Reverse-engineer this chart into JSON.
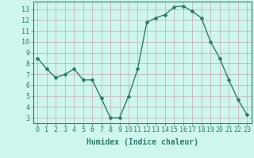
{
  "x": [
    0,
    1,
    2,
    3,
    4,
    5,
    6,
    7,
    8,
    9,
    10,
    11,
    12,
    13,
    14,
    15,
    16,
    17,
    18,
    19,
    20,
    21,
    22,
    23
  ],
  "y": [
    8.5,
    7.5,
    6.7,
    7.0,
    7.5,
    6.5,
    6.5,
    4.8,
    3.0,
    3.0,
    5.0,
    7.5,
    11.8,
    12.2,
    12.5,
    13.2,
    13.3,
    12.8,
    12.2,
    10.0,
    8.5,
    6.5,
    4.7,
    3.3
  ],
  "line_color": "#2e7d6e",
  "marker": "D",
  "marker_size": 2.0,
  "bg_color": "#cef5ee",
  "grid_color": "#c0a8b8",
  "xlabel": "Humidex (Indice chaleur)",
  "xlim": [
    -0.5,
    23.5
  ],
  "ylim": [
    2.5,
    13.7
  ],
  "yticks": [
    3,
    4,
    5,
    6,
    7,
    8,
    9,
    10,
    11,
    12,
    13
  ],
  "xticks": [
    0,
    1,
    2,
    3,
    4,
    5,
    6,
    7,
    8,
    9,
    10,
    11,
    12,
    13,
    14,
    15,
    16,
    17,
    18,
    19,
    20,
    21,
    22,
    23
  ],
  "tick_color": "#2e7d6e",
  "label_fontsize": 7,
  "tick_fontsize": 6,
  "line_width": 1.0
}
